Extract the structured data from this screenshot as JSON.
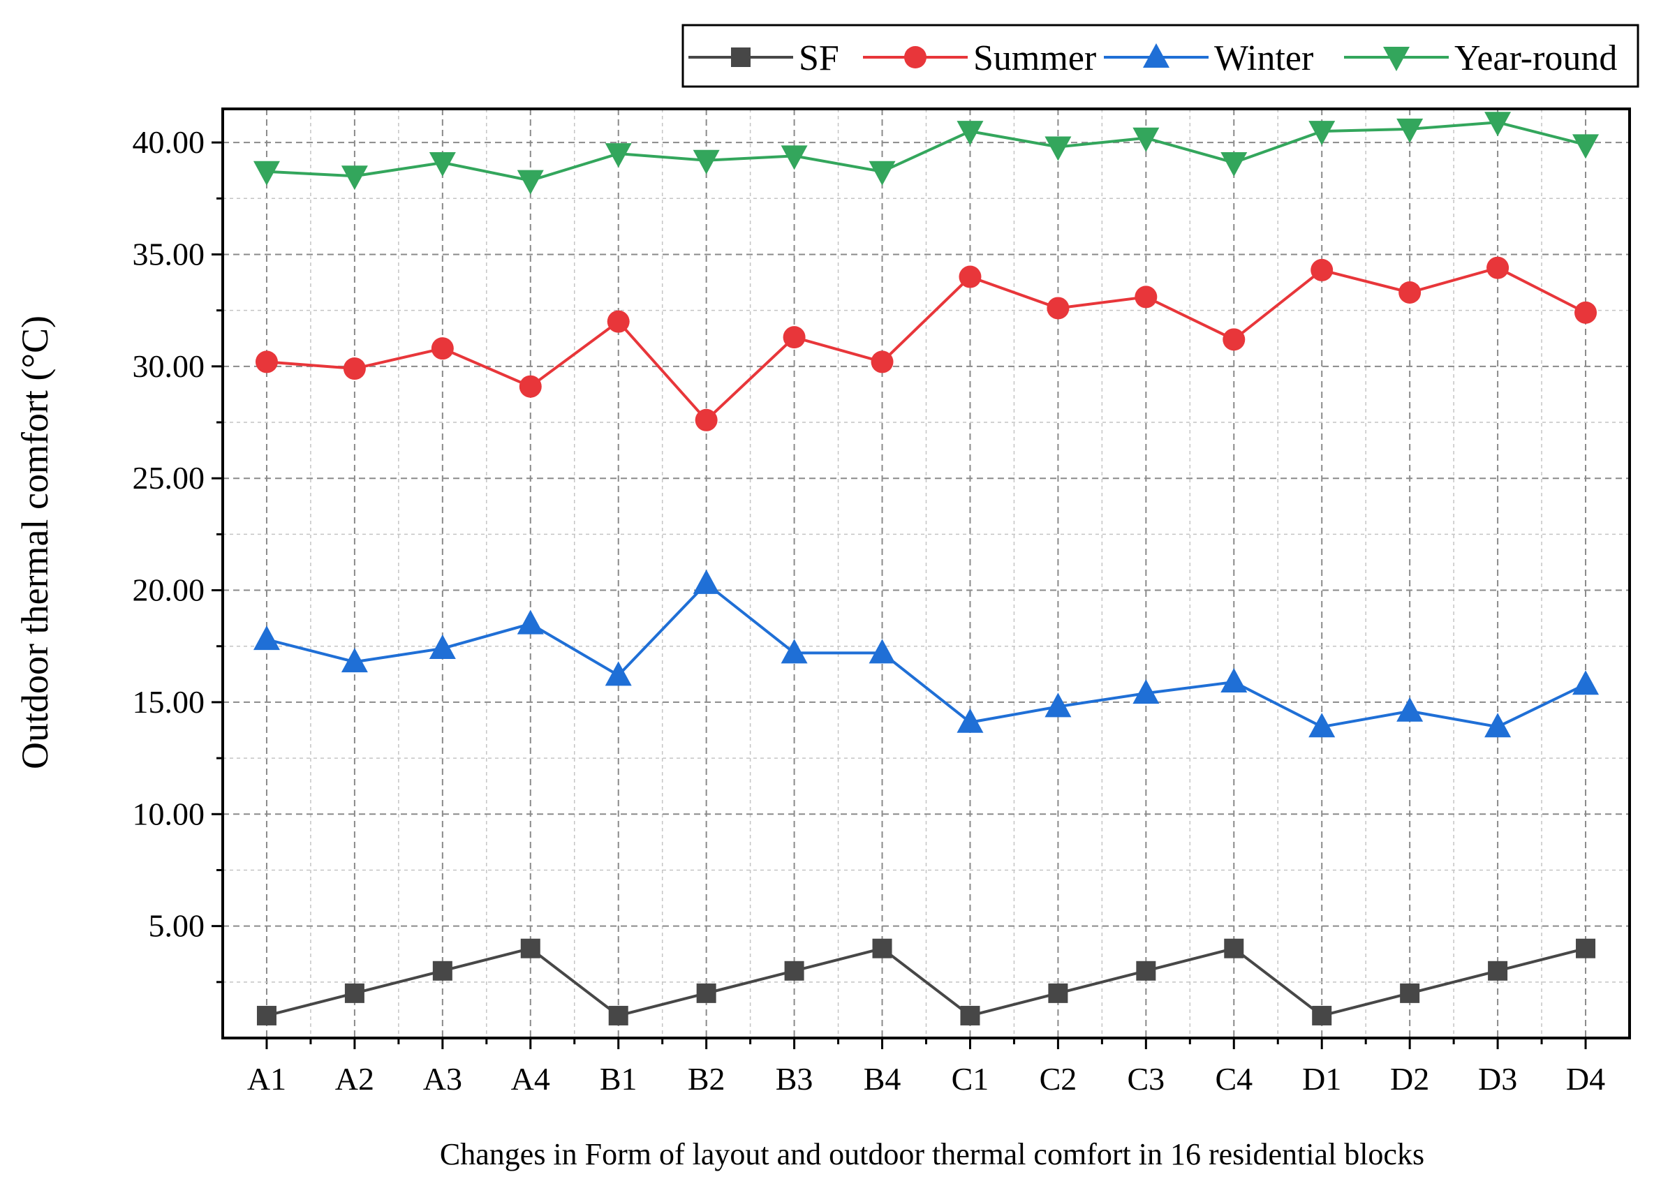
{
  "chart_data": {
    "type": "line",
    "title": "",
    "xlabel": "Changes in Form of layout and  outdoor thermal comfort in 16  residential blocks",
    "ylabel": "Outdoor thermal comfort (°C)",
    "categories": [
      "A1",
      "A2",
      "A3",
      "A4",
      "B1",
      "B2",
      "B3",
      "B4",
      "C1",
      "C2",
      "C3",
      "C4",
      "D1",
      "D2",
      "D3",
      "D4"
    ],
    "ylim": [
      0,
      41.5
    ],
    "yticks": [
      5,
      10,
      15,
      20,
      25,
      30,
      35,
      40
    ],
    "ytick_labels": [
      "5.00",
      "10.00",
      "15.00",
      "20.00",
      "25.00",
      "30.00",
      "35.00",
      "40.00"
    ],
    "grid": true,
    "legend_position": "top-right, above plot",
    "series": [
      {
        "name": "SF",
        "marker": "square",
        "color": "#474747",
        "values": [
          1,
          2,
          3,
          4,
          1,
          2,
          3,
          4,
          1,
          2,
          3,
          4,
          1,
          2,
          3,
          4
        ]
      },
      {
        "name": "Summer",
        "marker": "circle",
        "color": "#e8363a",
        "values": [
          30.2,
          29.9,
          30.8,
          29.1,
          32.0,
          27.6,
          31.3,
          30.2,
          34.0,
          32.6,
          33.1,
          31.2,
          34.3,
          33.3,
          34.4,
          32.4
        ]
      },
      {
        "name": "Winter",
        "marker": "triangle-up",
        "color": "#1f6fd6",
        "values": [
          17.8,
          16.8,
          17.4,
          18.5,
          16.2,
          20.3,
          17.2,
          17.2,
          14.1,
          14.8,
          15.4,
          15.9,
          13.9,
          14.6,
          13.9,
          15.8
        ]
      },
      {
        "name": "Year-round",
        "marker": "triangle-down",
        "color": "#33a65c",
        "values": [
          38.7,
          38.5,
          39.1,
          38.3,
          39.5,
          39.2,
          39.4,
          38.7,
          40.5,
          39.8,
          40.2,
          39.1,
          40.5,
          40.6,
          40.9,
          39.9
        ]
      }
    ]
  }
}
